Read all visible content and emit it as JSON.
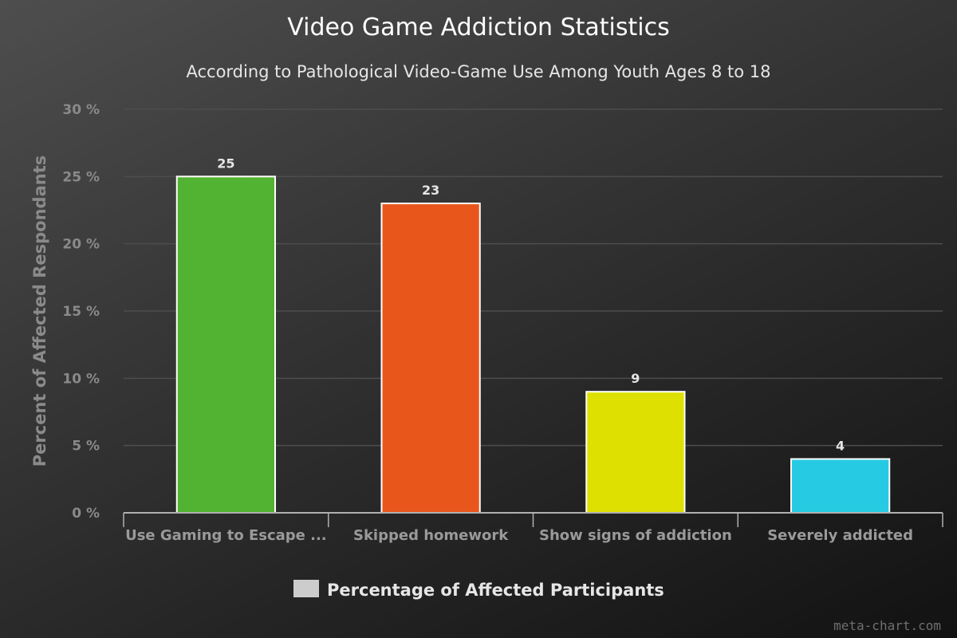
{
  "chart_data": {
    "type": "bar",
    "title": "Video Game Addiction Statistics",
    "subtitle": "According to Pathological Video-Game Use Among Youth Ages 8 to 18",
    "ylabel": "Percent of Affected Respondants",
    "xlabel": "",
    "categories": [
      "Use Gaming to Escape ...",
      "Skipped homework",
      "Show signs of addiction",
      "Severely addicted"
    ],
    "series": [
      {
        "name": "Percentage of Affected Participants",
        "values": [
          25,
          23,
          9,
          4
        ],
        "data_labels": [
          "25",
          "23",
          "9",
          "4"
        ]
      }
    ],
    "colors": [
      "#52b232",
      "#e8561c",
      "#dde000",
      "#26cbe3"
    ],
    "legend_swatch_color": "#cccccc",
    "ylim": [
      0,
      30
    ],
    "yticks": [
      0,
      5,
      10,
      15,
      20,
      25,
      30
    ],
    "ytick_labels": [
      "0 %",
      "5 %",
      "10 %",
      "15 %",
      "20 %",
      "25 %",
      "30 %"
    ],
    "grid": true,
    "legend_position": "bottom-center"
  },
  "credit": "meta-chart.com"
}
